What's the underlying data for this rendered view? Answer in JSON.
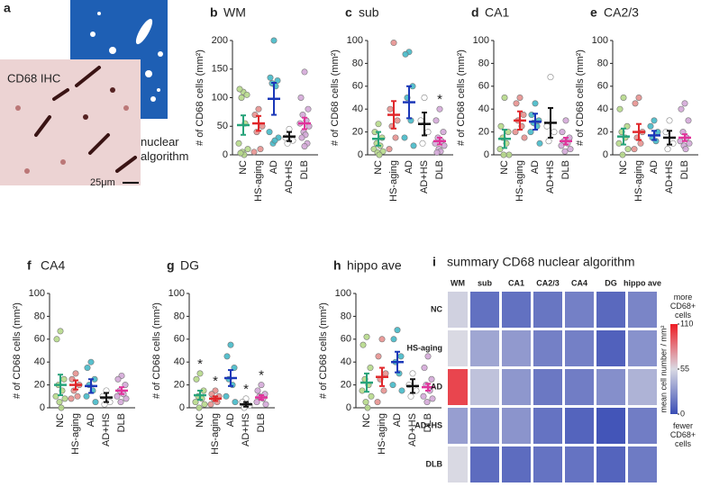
{
  "figure_a": {
    "label": "a",
    "stain": "CD68 IHC",
    "method": "nuclear algorithm",
    "scale_bar": "25μm"
  },
  "chart_data": [
    {
      "type": "dotplot",
      "label": "b",
      "title": "WM",
      "ylabel": "# of CD68 cells (mm²)",
      "categories": [
        "NC",
        "HS-aging",
        "AD",
        "AD+HS",
        "DLB"
      ],
      "means": [
        52,
        55,
        98,
        32,
        55
      ],
      "errors": [
        17,
        13,
        28,
        8,
        10
      ],
      "points": [
        [
          110,
          115,
          105,
          100,
          55,
          20,
          10,
          5,
          0,
          3
        ],
        [
          80,
          70,
          50,
          40,
          10,
          5
        ],
        [
          200,
          135,
          130,
          125,
          120,
          40,
          30,
          20,
          25
        ],
        [
          45,
          30,
          25,
          20
        ],
        [
          145,
          100,
          80,
          70,
          60,
          55,
          50,
          40,
          35,
          30,
          20,
          15
        ]
      ],
      "ylim": [
        0,
        200
      ],
      "yticks": [
        0,
        50,
        100,
        150,
        200
      ],
      "annotations": []
    },
    {
      "type": "dotplot",
      "label": "c",
      "title": "sub",
      "ylabel": "# of CD68 cells (mm²)",
      "categories": [
        "NC",
        "HS-aging",
        "AD",
        "AD+HS",
        "DLB"
      ],
      "means": [
        14,
        35,
        46,
        27,
        12
      ],
      "errors": [
        6,
        12,
        14,
        10,
        3
      ],
      "points": [
        [
          27,
          20,
          15,
          10,
          8,
          5,
          3,
          2,
          0
        ],
        [
          98,
          40,
          30,
          25,
          15,
          5
        ],
        [
          90,
          88,
          60,
          50,
          30,
          15,
          8
        ],
        [
          50,
          30,
          20,
          10
        ],
        [
          40,
          30,
          20,
          15,
          12,
          10,
          8,
          5,
          3,
          2
        ]
      ],
      "ylim": [
        0,
        100
      ],
      "yticks": [
        0,
        20,
        40,
        60,
        80,
        100
      ],
      "annotations": [
        {
          "text": "*",
          "category": "DLB"
        }
      ]
    },
    {
      "type": "dotplot",
      "label": "d",
      "title": "CA1",
      "ylabel": "# of CD68 cells (mm²)",
      "categories": [
        "NC",
        "HS-aging",
        "AD",
        "AD+HS",
        "DLB"
      ],
      "means": [
        14,
        30,
        29,
        28,
        12
      ],
      "errors": [
        8,
        8,
        7,
        13,
        3
      ],
      "points": [
        [
          50,
          25,
          20,
          15,
          10,
          5,
          0,
          0
        ],
        [
          50,
          45,
          35,
          30,
          25,
          20,
          15
        ],
        [
          45,
          35,
          30,
          28,
          25,
          20,
          10
        ],
        [
          68,
          25,
          20,
          12
        ],
        [
          30,
          20,
          15,
          12,
          10,
          8,
          5,
          3
        ]
      ],
      "ylim": [
        0,
        100
      ],
      "yticks": [
        0,
        20,
        40,
        60,
        80,
        100
      ],
      "annotations": []
    },
    {
      "type": "dotplot",
      "label": "e",
      "title": "CA2/3",
      "ylabel": "# of CD68 cells (mm²)",
      "categories": [
        "NC",
        "HS-aging",
        "AD",
        "AD+HS",
        "DLB"
      ],
      "means": [
        16,
        20,
        17,
        15,
        15
      ],
      "errors": [
        7,
        7,
        4,
        6,
        3
      ],
      "points": [
        [
          50,
          40,
          25,
          20,
          15,
          10,
          5,
          0
        ],
        [
          50,
          45,
          20,
          15,
          10,
          5
        ],
        [
          30,
          25,
          20,
          15,
          12
        ],
        [
          30,
          20,
          10,
          5
        ],
        [
          45,
          40,
          30,
          20,
          15,
          12,
          10,
          8,
          5
        ]
      ],
      "ylim": [
        0,
        100
      ],
      "yticks": [
        0,
        20,
        40,
        60,
        80,
        100
      ],
      "annotations": []
    },
    {
      "type": "dotplot",
      "label": "f",
      "title": "CA4",
      "ylabel": "# of CD68 cells (mm²)",
      "categories": [
        "NC",
        "HS-aging",
        "AD",
        "AD+HS",
        "DLB"
      ],
      "means": [
        20,
        20,
        19,
        9,
        15
      ],
      "errors": [
        9,
        4,
        6,
        4,
        3
      ],
      "points": [
        [
          67,
          60,
          25,
          20,
          15,
          10,
          8,
          5,
          0
        ],
        [
          30,
          25,
          20,
          15,
          10,
          8
        ],
        [
          40,
          35,
          25,
          20,
          15,
          10,
          5
        ],
        [
          15,
          10,
          5,
          3
        ],
        [
          28,
          25,
          20,
          15,
          12,
          10,
          8,
          5
        ]
      ],
      "ylim": [
        0,
        100
      ],
      "yticks": [
        0,
        20,
        40,
        60,
        80,
        100
      ],
      "annotations": []
    },
    {
      "type": "dotplot",
      "label": "g",
      "title": "DG",
      "ylabel": "# of CD68 cells (mm²)",
      "categories": [
        "NC",
        "HS-aging",
        "AD",
        "AD+HS",
        "DLB"
      ],
      "means": [
        11,
        8,
        26,
        3,
        9
      ],
      "errors": [
        4,
        2,
        7,
        2,
        2
      ],
      "points": [
        [
          30,
          25,
          15,
          10,
          8,
          5,
          3,
          0
        ],
        [
          15,
          12,
          10,
          8,
          5,
          3
        ],
        [
          55,
          45,
          35,
          25,
          20,
          10,
          5
        ],
        [
          8,
          5,
          2,
          0
        ],
        [
          20,
          15,
          12,
          10,
          8,
          5,
          3
        ]
      ],
      "ylim": [
        0,
        100
      ],
      "yticks": [
        0,
        20,
        40,
        60,
        80,
        100
      ],
      "annotations": [
        {
          "text": "*",
          "category": "NC"
        },
        {
          "text": "*",
          "category": "HS-aging"
        },
        {
          "text": "*",
          "category": "AD+HS"
        },
        {
          "text": "*",
          "category": "DLB"
        }
      ]
    },
    {
      "type": "dotplot",
      "label": "h",
      "title": "hippo ave",
      "ylabel": "# of CD68 cells (mm²)",
      "categories": [
        "NC",
        "HS-aging",
        "AD",
        "AD+HS",
        "DLB"
      ],
      "means": [
        22,
        27,
        40,
        19,
        18
      ],
      "errors": [
        8,
        8,
        9,
        6,
        3
      ],
      "points": [
        [
          62,
          55,
          35,
          25,
          20,
          15,
          10,
          5,
          0
        ],
        [
          60,
          45,
          30,
          25,
          15,
          5
        ],
        [
          68,
          60,
          45,
          40,
          30,
          20,
          15
        ],
        [
          30,
          20,
          15,
          10
        ],
        [
          45,
          35,
          25,
          20,
          15,
          10,
          8,
          5
        ]
      ],
      "ylim": [
        0,
        100
      ],
      "yticks": [
        0,
        20,
        40,
        60,
        80,
        100
      ],
      "annotations": []
    },
    {
      "type": "heatmap",
      "label": "i",
      "title": "summary CD68 nuclear algorithm",
      "columns": [
        "WM",
        "sub",
        "CA1",
        "CA2/3",
        "CA4",
        "DG",
        "hippo ave"
      ],
      "rows": [
        "NC",
        "HS-aging",
        "AD",
        "AD+HS",
        "DLB"
      ],
      "values": [
        [
          52,
          14,
          14,
          16,
          20,
          11,
          22
        ],
        [
          55,
          35,
          30,
          20,
          20,
          8,
          27
        ],
        [
          98,
          46,
          29,
          17,
          19,
          26,
          40
        ],
        [
          32,
          27,
          28,
          15,
          9,
          3,
          19
        ],
        [
          55,
          12,
          12,
          15,
          15,
          9,
          18
        ]
      ],
      "clim": [
        0,
        110
      ],
      "cticks": [
        0,
        55,
        110
      ],
      "colormap": [
        "#3a4db5",
        "#d9d9e3",
        "#ee1c24"
      ],
      "colorbar_label": "mean cell number / mm²",
      "high_label": "more CD68+ cells",
      "low_label": "fewer CD68+ cells"
    }
  ],
  "mean_colors": [
    "#27a37a",
    "#e0262a",
    "#1a37b8",
    "#111111",
    "#e0349b"
  ],
  "point_colors": [
    "#b6d98a",
    "#e7918f",
    "#45b9c8",
    "#ffffff",
    "#d4a8d8"
  ]
}
